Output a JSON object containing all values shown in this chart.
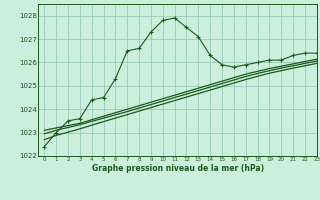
{
  "title": "Graphe pression niveau de la mer (hPa)",
  "background_color": "#cceedd",
  "grid_color": "#99ccbb",
  "line_color": "#1a5c1a",
  "xlim": [
    -0.5,
    23
  ],
  "ylim": [
    1022,
    1028.5
  ],
  "yticks": [
    1022,
    1023,
    1024,
    1025,
    1026,
    1027,
    1028
  ],
  "xticks": [
    0,
    1,
    2,
    3,
    4,
    5,
    6,
    7,
    8,
    9,
    10,
    11,
    12,
    13,
    14,
    15,
    16,
    17,
    18,
    19,
    20,
    21,
    22,
    23
  ],
  "series": [
    {
      "x": [
        0,
        1,
        2,
        3,
        4,
        5,
        6,
        7,
        8,
        9,
        10,
        11,
        12,
        13,
        14,
        15,
        16,
        17,
        18,
        19,
        20,
        21,
        22,
        23
      ],
      "y": [
        1022.4,
        1023.0,
        1023.5,
        1023.6,
        1024.4,
        1024.5,
        1025.3,
        1026.5,
        1026.6,
        1027.3,
        1027.8,
        1027.9,
        1027.5,
        1027.1,
        1026.3,
        1025.9,
        1025.8,
        1025.9,
        1026.0,
        1026.1,
        1026.1,
        1026.3,
        1026.4,
        1026.4
      ],
      "marker": true
    },
    {
      "x": [
        0,
        1,
        2,
        3,
        4,
        5,
        6,
        7,
        8,
        9,
        10,
        11,
        12,
        13,
        14,
        15,
        16,
        17,
        18,
        19,
        20,
        21,
        22,
        23
      ],
      "y": [
        1023.1,
        1023.2,
        1023.3,
        1023.4,
        1023.55,
        1023.7,
        1023.85,
        1024.0,
        1024.15,
        1024.3,
        1024.45,
        1024.6,
        1024.75,
        1024.9,
        1025.05,
        1025.2,
        1025.35,
        1025.5,
        1025.62,
        1025.74,
        1025.84,
        1025.94,
        1026.04,
        1026.14
      ],
      "marker": false
    },
    {
      "x": [
        0,
        1,
        2,
        3,
        4,
        5,
        6,
        7,
        8,
        9,
        10,
        11,
        12,
        13,
        14,
        15,
        16,
        17,
        18,
        19,
        20,
        21,
        22,
        23
      ],
      "y": [
        1022.95,
        1023.1,
        1023.22,
        1023.34,
        1023.48,
        1023.62,
        1023.76,
        1023.9,
        1024.05,
        1024.2,
        1024.35,
        1024.5,
        1024.65,
        1024.8,
        1024.95,
        1025.1,
        1025.25,
        1025.4,
        1025.53,
        1025.65,
        1025.76,
        1025.86,
        1025.96,
        1026.06
      ],
      "marker": false
    },
    {
      "x": [
        0,
        1,
        2,
        3,
        4,
        5,
        6,
        7,
        8,
        9,
        10,
        11,
        12,
        13,
        14,
        15,
        16,
        17,
        18,
        19,
        20,
        21,
        22,
        23
      ],
      "y": [
        1022.7,
        1022.88,
        1023.02,
        1023.16,
        1023.32,
        1023.47,
        1023.62,
        1023.77,
        1023.92,
        1024.07,
        1024.22,
        1024.37,
        1024.52,
        1024.67,
        1024.82,
        1024.97,
        1025.12,
        1025.27,
        1025.41,
        1025.54,
        1025.65,
        1025.76,
        1025.86,
        1025.96
      ],
      "marker": false
    }
  ]
}
